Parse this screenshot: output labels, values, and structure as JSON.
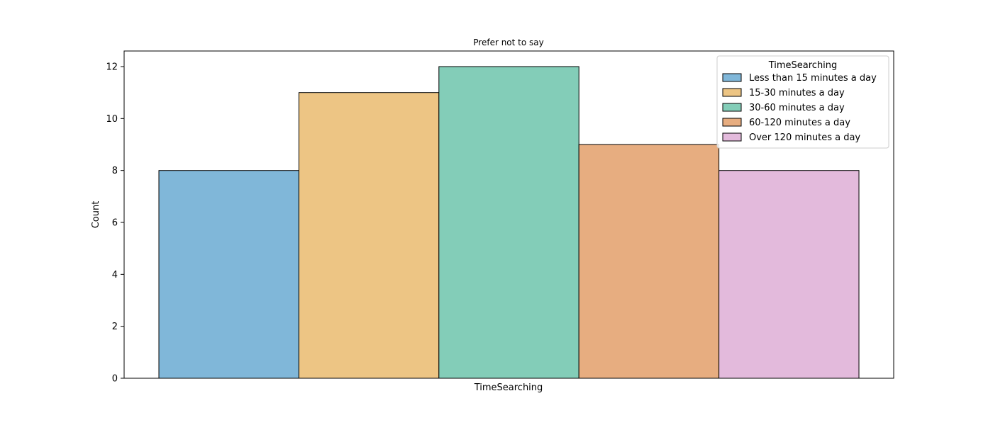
{
  "chart_data": {
    "type": "bar",
    "title": "Prefer not to say",
    "xlabel": "TimeSearching",
    "ylabel": "Count",
    "ylim": [
      0,
      12.6
    ],
    "yticks": [
      0,
      2,
      4,
      6,
      8,
      10,
      12
    ],
    "grid": false,
    "legend": {
      "title": "TimeSearching",
      "placement": "top-right"
    },
    "series": [
      {
        "name": "Less than 15 minutes a day",
        "value": 8,
        "color": "#80b7d9"
      },
      {
        "name": "15-30 minutes a day",
        "value": 11,
        "color": "#edc584"
      },
      {
        "name": "30-60 minutes a day",
        "value": 12,
        "color": "#83cdb8"
      },
      {
        "name": "60-120 minutes a day",
        "value": 9,
        "color": "#e7ad80"
      },
      {
        "name": "Over 120 minutes a day",
        "value": 8,
        "color": "#e3badc"
      }
    ]
  }
}
